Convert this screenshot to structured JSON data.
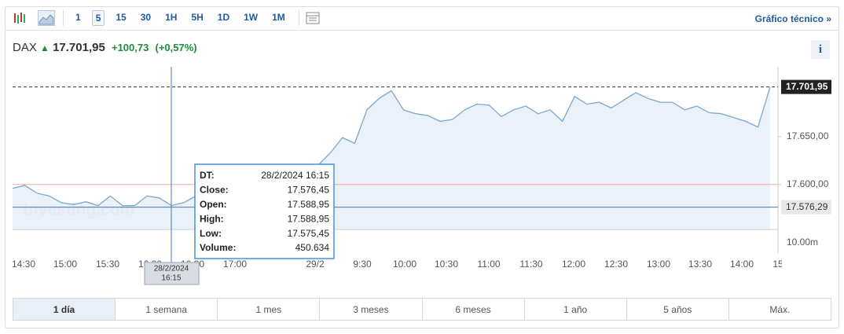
{
  "toolbar": {
    "intervals": [
      "1",
      "5",
      "15",
      "30",
      "1H",
      "5H",
      "1D",
      "1W",
      "1M"
    ],
    "link": "Gráfico técnico »"
  },
  "header": {
    "symbol": "DAX",
    "price": "17.701,95",
    "change": "+100,73",
    "change_pct": "(+0,57%)",
    "info": "i"
  },
  "watermark": "Investing.com",
  "tooltip": {
    "rows": [
      [
        "DT:",
        "28/2/2024 16:15"
      ],
      [
        "Close:",
        "17.576,45"
      ],
      [
        "Open:",
        "17.588,95"
      ],
      [
        "High:",
        "17.588,95"
      ],
      [
        "Low:",
        "17.575,45"
      ],
      [
        "Volume:",
        "450.634"
      ]
    ]
  },
  "crosshair": {
    "date": "28/2/2024",
    "time": "16:15"
  },
  "ranges": [
    "1 día",
    "1 semana",
    "1 mes",
    "3 meses",
    "6 meses",
    "1 año",
    "5 años",
    "Máx."
  ],
  "chart_data": {
    "type": "area",
    "color": "#7ba7cf",
    "fill": "#e6eef6",
    "values": [
      17596,
      17599,
      17591,
      17588,
      17581,
      17579,
      17582,
      17578,
      17588,
      17578,
      17578,
      17588,
      17586,
      17578,
      17581,
      17588,
      17590,
      17592,
      17588,
      17590,
      17595,
      17596,
      17594,
      17598,
      17600,
      17620,
      17633,
      17649,
      17643,
      17678,
      17690,
      17698,
      17678,
      17674,
      17672,
      17666,
      17668,
      17678,
      17684,
      17683,
      17671,
      17678,
      17682,
      17674,
      17678,
      17666,
      17692,
      17684,
      17686,
      17680,
      17688,
      17696,
      17690,
      17686,
      17686,
      17678,
      17682,
      17675,
      17674,
      17670,
      17666,
      17660,
      17701.95
    ],
    "x_labels": [
      "14:30",
      "15:00",
      "15:30",
      "16:00",
      "16:30",
      "17:00",
      "29/2",
      "9:30",
      "10:00",
      "10:30",
      "11:00",
      "11:30",
      "12:00",
      "12:30",
      "13:00",
      "13:30",
      "14:00",
      "15"
    ],
    "ylim": [
      17553,
      17723
    ],
    "yticks": [
      {
        "value": 17600,
        "label": "17.600,00"
      },
      {
        "value": 17650,
        "label": "17.650,00"
      }
    ],
    "last": {
      "value": 17701.95,
      "label": "17.701,95"
    },
    "cursor": {
      "value": 17576.29,
      "label": "17.576,29"
    },
    "reference": 17600,
    "volume_label": "10.00m"
  }
}
